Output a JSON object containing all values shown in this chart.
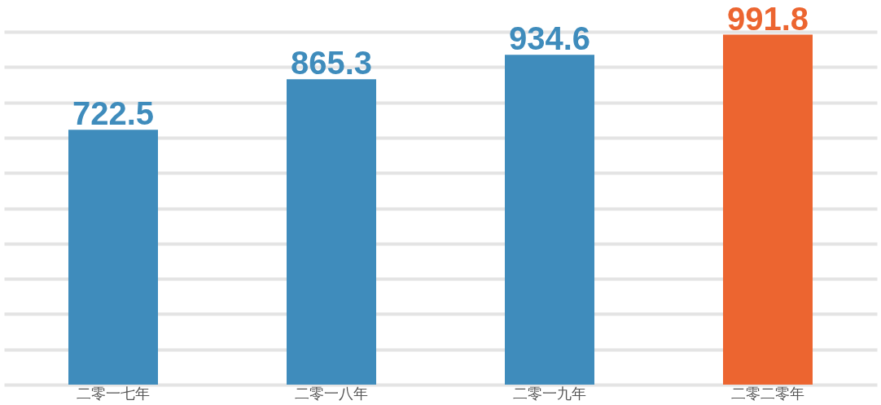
{
  "chart_data": {
    "type": "bar",
    "categories": [
      "二零一七年",
      "二零一八年",
      "二零一九年",
      "二零二零年"
    ],
    "values": [
      722.5,
      865.3,
      934.6,
      991.8
    ],
    "colors": [
      "#3f8cbc",
      "#3f8cbc",
      "#3f8cbc",
      "#ec6530"
    ],
    "data_labels": true,
    "grid": "y",
    "tick_labels": "x"
  }
}
